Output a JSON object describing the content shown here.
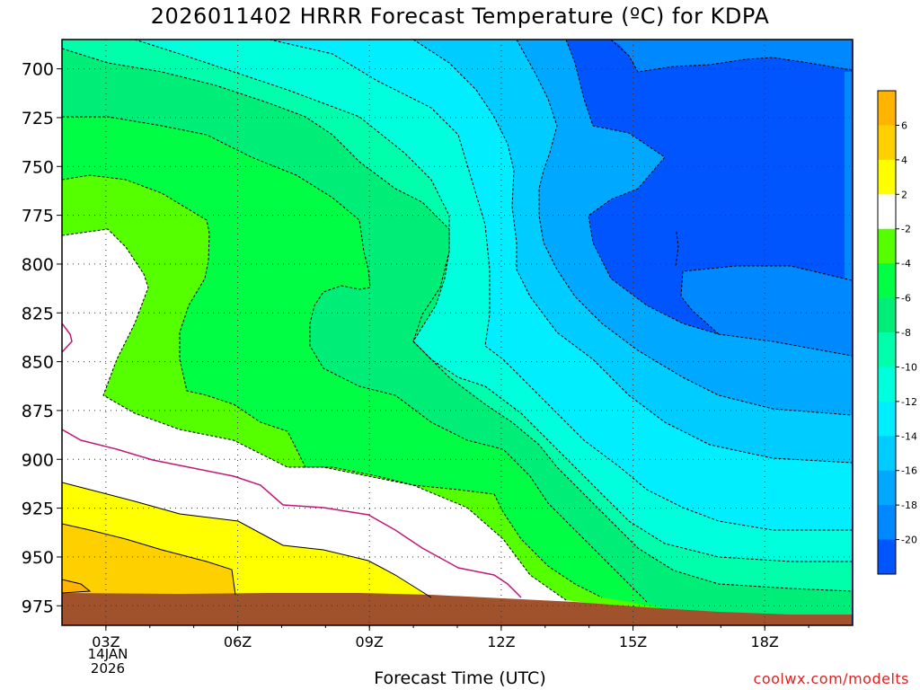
{
  "chart_data": {
    "type": "contour",
    "title": "2026011402 HRRR Forecast Temperature (ºC) for KDPA",
    "xlabel": "Forecast Time (UTC)",
    "ylabel": "",
    "x_ticks": [
      "03Z",
      "06Z",
      "09Z",
      "12Z",
      "15Z",
      "18Z"
    ],
    "x_date_lines": [
      "14JAN",
      "2026"
    ],
    "y_ticks": [
      700,
      725,
      750,
      775,
      800,
      825,
      850,
      875,
      900,
      925,
      950,
      975
    ],
    "xlim": [
      "02Z",
      "20Z"
    ],
    "ylim": [
      685,
      985
    ],
    "grid": true,
    "units": "ºC",
    "contour_interval": 2,
    "colorbar": {
      "labels": [
        6,
        4,
        2,
        -2,
        -4,
        -6,
        -8,
        -10,
        -12,
        -14,
        -16,
        -18,
        -20
      ],
      "colors": [
        "#ffb400",
        "#ffd000",
        "#ffff00",
        "#ffffff",
        "#55ff00",
        "#00ff44",
        "#00ee77",
        "#00ffaa",
        "#00ffdd",
        "#00eeff",
        "#00ccff",
        "#00a8ff",
        "#0088ff",
        "#0055ff"
      ]
    },
    "notes": {
      "surface": "ground below surface shaded brown"
    }
  },
  "credit": "coolwx.com/modelts"
}
